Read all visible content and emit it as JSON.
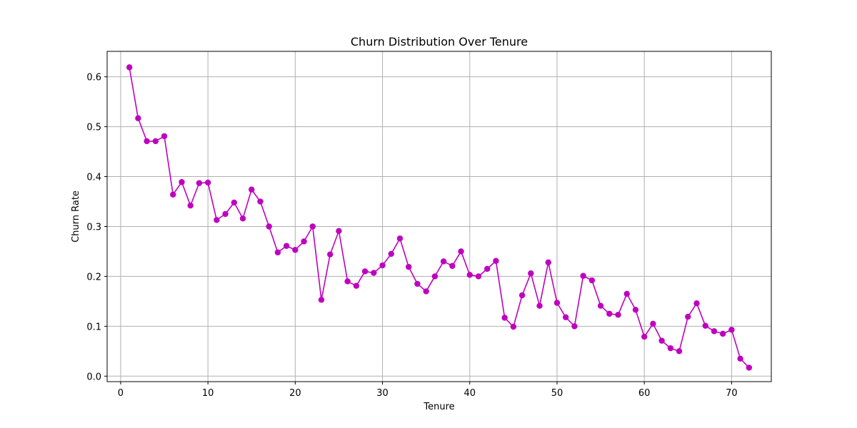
{
  "chart_data": {
    "type": "line",
    "title": "Churn Distribution Over Tenure",
    "xlabel": "Tenure",
    "ylabel": "Churn Rate",
    "xlim": [
      -1.55,
      74.55
    ],
    "ylim": [
      -0.011,
      0.651
    ],
    "xticks": [
      0,
      10,
      20,
      30,
      40,
      50,
      60,
      70
    ],
    "yticks": [
      0.0,
      0.1,
      0.2,
      0.3,
      0.4,
      0.5,
      0.6
    ],
    "grid": true,
    "marker": "circle",
    "series": [
      {
        "color": "#bf00bf",
        "x": [
          1,
          2,
          3,
          4,
          5,
          6,
          7,
          8,
          9,
          10,
          11,
          12,
          13,
          14,
          15,
          16,
          17,
          18,
          19,
          20,
          21,
          22,
          23,
          24,
          25,
          26,
          27,
          28,
          29,
          30,
          31,
          32,
          33,
          34,
          35,
          36,
          37,
          38,
          39,
          40,
          41,
          42,
          43,
          44,
          45,
          46,
          47,
          48,
          49,
          50,
          51,
          52,
          53,
          54,
          55,
          56,
          57,
          58,
          59,
          60,
          61,
          62,
          63,
          64,
          65,
          66,
          67,
          68,
          69,
          70,
          71,
          72
        ],
        "values": [
          0.619,
          0.517,
          0.471,
          0.471,
          0.481,
          0.364,
          0.389,
          0.342,
          0.387,
          0.388,
          0.313,
          0.325,
          0.348,
          0.316,
          0.374,
          0.35,
          0.3,
          0.248,
          0.261,
          0.253,
          0.27,
          0.3,
          0.153,
          0.244,
          0.291,
          0.19,
          0.181,
          0.21,
          0.207,
          0.222,
          0.245,
          0.276,
          0.219,
          0.185,
          0.17,
          0.2,
          0.23,
          0.221,
          0.25,
          0.203,
          0.2,
          0.215,
          0.231,
          0.117,
          0.099,
          0.162,
          0.206,
          0.141,
          0.228,
          0.147,
          0.118,
          0.1,
          0.201,
          0.192,
          0.141,
          0.125,
          0.123,
          0.165,
          0.133,
          0.079,
          0.105,
          0.071,
          0.056,
          0.05,
          0.119,
          0.146,
          0.101,
          0.09,
          0.085,
          0.093,
          0.035,
          0.017
        ]
      }
    ]
  }
}
